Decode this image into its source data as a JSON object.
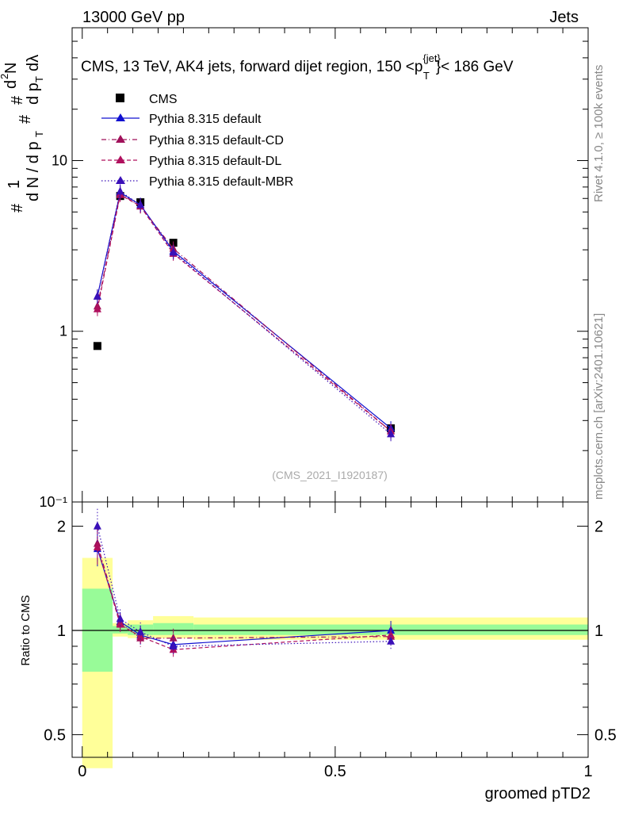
{
  "header": {
    "left": "13000 GeV pp",
    "right": "Jets",
    "analysis_id": "(CMS_2021_I1920187)",
    "side_top": "Rivet 4.1.0, ≥ 100k events",
    "side_bottom": "mcplots.cern.ch [arXiv:2401.10621]"
  },
  "colors": {
    "cms": "#000000",
    "default": "#1010d0",
    "cd": "#a0105a",
    "dl": "#b0105e",
    "mbr": "#3a10b8",
    "band_inner": "#98fb98",
    "band_outer": "#ffff99"
  },
  "chart_data": [
    {
      "id": "main",
      "type": "line",
      "title": "CMS, 13 TeV, AK4 jets, forward dijet region, 150 <p_T^{jet}< 186 GeV",
      "title_parts": {
        "before": "CMS, 13 TeV, AK4 jets, forward dijet region, 150 <p",
        "sup": "{jet}",
        "sub": "T",
        "after": "}< 186 GeV"
      },
      "ylabel": "1/(dN/dp_T) d²N/(dp_T dλ)",
      "ylabel_parts": [
        "#",
        "1",
        "d N / d p",
        "T",
        "#",
        "d",
        "2",
        "N",
        "#",
        "d p",
        "T",
        "dλ"
      ],
      "yscale": "log",
      "ylim": [
        0.1,
        60
      ],
      "xlim": [
        -0.02,
        1.0
      ],
      "y_ticks": [
        {
          "value": 0.1,
          "label": "10⁻¹"
        },
        {
          "value": 1,
          "label": "1"
        },
        {
          "value": 10,
          "label": "10"
        }
      ],
      "legend_position": "top-left",
      "series": [
        {
          "name": "CMS",
          "key": "cms",
          "marker": "square",
          "x": [
            0.03,
            0.075,
            0.115,
            0.18,
            0.61
          ],
          "y": [
            0.82,
            6.2,
            5.7,
            3.3,
            0.27
          ]
        },
        {
          "name": "Pythia 8.315 default",
          "key": "default",
          "marker": "triangle",
          "dash": "solid",
          "x": [
            0.03,
            0.075,
            0.115,
            0.18,
            0.61
          ],
          "y": [
            1.6,
            6.5,
            5.5,
            2.95,
            0.27
          ]
        },
        {
          "name": "Pythia 8.315 default-CD",
          "key": "cd",
          "marker": "triangle",
          "dash": "dashdot",
          "x": [
            0.03,
            0.075,
            0.115,
            0.18,
            0.61
          ],
          "y": [
            1.4,
            6.4,
            5.4,
            3.05,
            0.26
          ]
        },
        {
          "name": "Pythia 8.315 default-DL",
          "key": "dl",
          "marker": "triangle",
          "dash": "dashed",
          "x": [
            0.03,
            0.075,
            0.115,
            0.18,
            0.61
          ],
          "y": [
            1.35,
            6.3,
            5.4,
            2.85,
            0.26
          ]
        },
        {
          "name": "Pythia 8.315 default-MBR",
          "key": "mbr",
          "marker": "triangle",
          "dash": "dotted",
          "x": [
            0.03,
            0.075,
            0.115,
            0.18,
            0.61
          ],
          "y": [
            1.6,
            6.6,
            5.5,
            2.9,
            0.25
          ]
        }
      ]
    },
    {
      "id": "ratio",
      "type": "line",
      "ylabel": "Ratio to CMS",
      "xlabel": "groomed pTD2",
      "yscale": "log",
      "ylim": [
        0.43,
        2.35
      ],
      "xlim": [
        -0.02,
        1.0
      ],
      "x_ticks": [
        {
          "value": 0,
          "label": "0"
        },
        {
          "value": 0.5,
          "label": "0.5"
        },
        {
          "value": 1,
          "label": "1"
        }
      ],
      "y_ticks": [
        {
          "value": 0.5,
          "label": "0.5"
        },
        {
          "value": 1,
          "label": "1"
        },
        {
          "value": 2,
          "label": "2"
        }
      ],
      "bands": [
        {
          "x0": 0.0,
          "x1": 0.06,
          "inner": [
            0.76,
            1.32
          ],
          "outer": [
            0.4,
            1.62
          ]
        },
        {
          "x0": 0.06,
          "x1": 0.09,
          "inner": [
            0.98,
            1.03
          ],
          "outer": [
            0.96,
            1.05
          ]
        },
        {
          "x0": 0.09,
          "x1": 0.14,
          "inner": [
            0.97,
            1.04
          ],
          "outer": [
            0.95,
            1.07
          ]
        },
        {
          "x0": 0.14,
          "x1": 0.22,
          "inner": [
            0.97,
            1.05
          ],
          "outer": [
            0.95,
            1.1
          ]
        },
        {
          "x0": 0.22,
          "x1": 1.0,
          "inner": [
            0.97,
            1.04
          ],
          "outer": [
            0.94,
            1.09
          ]
        }
      ],
      "series": [
        {
          "name": "Pythia 8.315 default",
          "key": "default",
          "dash": "solid",
          "x": [
            0.03,
            0.075,
            0.115,
            0.18,
            0.61
          ],
          "y": [
            1.72,
            1.06,
            0.97,
            0.91,
            1.0
          ]
        },
        {
          "name": "Pythia 8.315 default-CD",
          "key": "cd",
          "dash": "dashdot",
          "x": [
            0.03,
            0.075,
            0.115,
            0.18,
            0.61
          ],
          "y": [
            1.78,
            1.05,
            0.95,
            0.95,
            0.96
          ]
        },
        {
          "name": "Pythia 8.315 default-DL",
          "key": "dl",
          "dash": "dashed",
          "x": [
            0.03,
            0.075,
            0.115,
            0.18,
            0.61
          ],
          "y": [
            1.74,
            1.04,
            0.96,
            0.88,
            0.97
          ]
        },
        {
          "name": "Pythia 8.315 default-MBR",
          "key": "mbr",
          "dash": "dotted",
          "x": [
            0.03,
            0.075,
            0.115,
            0.18,
            0.61
          ],
          "y": [
            2.0,
            1.08,
            0.99,
            0.9,
            0.93
          ]
        }
      ]
    }
  ]
}
